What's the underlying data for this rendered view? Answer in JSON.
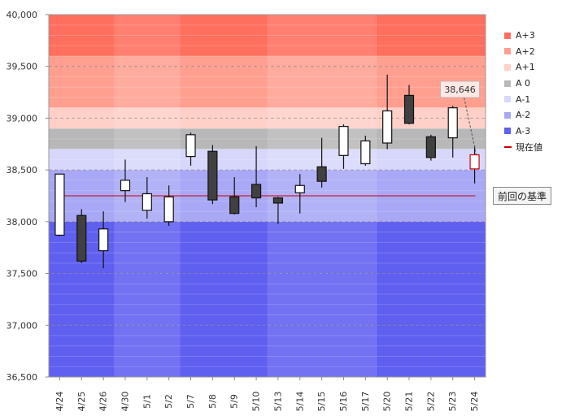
{
  "chart_data": {
    "type": "candlestick",
    "title": "",
    "xlabel": "",
    "ylabel": "",
    "ylim": [
      36500,
      40000
    ],
    "yticks": [
      36500,
      37000,
      37500,
      38000,
      38500,
      39000,
      39500,
      40000
    ],
    "ytick_labels": [
      "36,500",
      "37,000",
      "37,500",
      "38,000",
      "38,500",
      "39,000",
      "39,500",
      "40,000"
    ],
    "categories": [
      "4/24",
      "4/25",
      "4/26",
      "4/30",
      "5/1",
      "5/2",
      "5/7",
      "5/8",
      "5/9",
      "5/10",
      "5/13",
      "5/14",
      "5/15",
      "5/16",
      "5/17",
      "5/20",
      "5/21",
      "5/22",
      "5/23",
      "5/24"
    ],
    "candles": [
      {
        "open": 37870,
        "high": 38460,
        "low": 37860,
        "close": 38460
      },
      {
        "open": 38060,
        "high": 38120,
        "low": 37600,
        "close": 37620
      },
      {
        "open": 37720,
        "high": 38100,
        "low": 37550,
        "close": 37930
      },
      {
        "open": 38300,
        "high": 38600,
        "low": 38190,
        "close": 38400
      },
      {
        "open": 38110,
        "high": 38430,
        "low": 38030,
        "close": 38270
      },
      {
        "open": 38000,
        "high": 38350,
        "low": 37960,
        "close": 38240
      },
      {
        "open": 38630,
        "high": 38860,
        "low": 38540,
        "close": 38840
      },
      {
        "open": 38680,
        "high": 38740,
        "low": 38170,
        "close": 38210
      },
      {
        "open": 38240,
        "high": 38430,
        "low": 38070,
        "close": 38080
      },
      {
        "open": 38360,
        "high": 38730,
        "low": 38140,
        "close": 38230
      },
      {
        "open": 38230,
        "high": 38240,
        "low": 37980,
        "close": 38180
      },
      {
        "open": 38280,
        "high": 38460,
        "low": 38080,
        "close": 38350
      },
      {
        "open": 38530,
        "high": 38810,
        "low": 38330,
        "close": 38390
      },
      {
        "open": 38640,
        "high": 38940,
        "low": 38510,
        "close": 38920
      },
      {
        "open": 38560,
        "high": 38830,
        "low": 38540,
        "close": 38780
      },
      {
        "open": 38760,
        "high": 39420,
        "low": 38700,
        "close": 39070
      },
      {
        "open": 39220,
        "high": 39320,
        "low": 38940,
        "close": 38950
      },
      {
        "open": 38820,
        "high": 38840,
        "low": 38590,
        "close": 38620
      },
      {
        "open": 38810,
        "high": 39120,
        "low": 38620,
        "close": 39100
      },
      {
        "open": 38510,
        "high": 38730,
        "low": 38370,
        "close": 38646
      }
    ],
    "bands": [
      {
        "name": "A+3",
        "from": 39600,
        "to": 40000,
        "color": "#ff6f5e"
      },
      {
        "name": "A+2",
        "from": 39100,
        "to": 39600,
        "color": "#ff9f90"
      },
      {
        "name": "A+1",
        "from": 38900,
        "to": 39100,
        "color": "#ffd0c8"
      },
      {
        "name": "A 0",
        "from": 38700,
        "to": 38900,
        "color": "#b8b8b8"
      },
      {
        "name": "A-1",
        "from": 38500,
        "to": 38700,
        "color": "#d7d7fb"
      },
      {
        "name": "A-2",
        "from": 38000,
        "to": 38500,
        "color": "#a8a8f6"
      },
      {
        "name": "A-3",
        "from": 36500,
        "to": 38000,
        "color": "#5f5ff0"
      }
    ],
    "band_change_after": [
      "4/26",
      "5/2",
      "5/10",
      "5/17"
    ],
    "current_value": 38250,
    "current_value_label": "現在値",
    "annotation": {
      "text": "38,646",
      "category": "5/24",
      "value": 38646
    },
    "legend": [
      "A+3",
      "A+2",
      "A+1",
      "A 0",
      "A-1",
      "A-2",
      "A-3",
      "現在値"
    ],
    "legend_position": "right",
    "bullish_color": "#ffffff",
    "bearish_color": "#404040",
    "current_line_color": "#cc0000"
  },
  "prev_button_label": "前回の基準"
}
